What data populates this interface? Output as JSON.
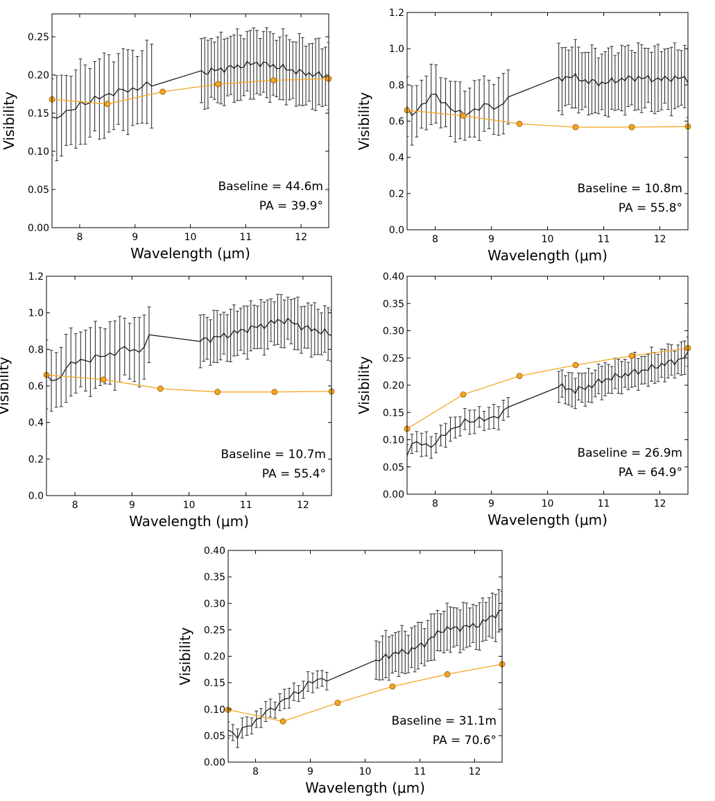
{
  "figure": {
    "description_axes": "five visibility-vs-wavelength panels",
    "colors": {
      "observed": "#1a1a1a",
      "errorbar": "#333333",
      "model": "#f5a623",
      "model_marker_edge": "#8a5a00"
    }
  },
  "chart_data": [
    {
      "type": "line",
      "xlabel": "Wavelength (μm)",
      "ylabel": "Visibility",
      "xlim": [
        7.5,
        12.5
      ],
      "ylim": [
        0.0,
        0.28
      ],
      "xticks": [
        8,
        9,
        10,
        11,
        12
      ],
      "xtick_labels": [
        "8",
        "9",
        "10",
        "11",
        "12"
      ],
      "yticks": [
        0.0,
        0.05,
        0.1,
        0.15,
        0.2,
        0.25
      ],
      "ytick_labels": [
        "0.00",
        "0.05",
        "0.10",
        "0.15",
        "0.20",
        "0.25"
      ],
      "annotation": {
        "baseline": "Baseline = 44.6m",
        "pa": "PA = 39.9°"
      },
      "observed": {
        "segments": [
          {
            "x_start": 7.5,
            "x_end": 9.3,
            "n": 22,
            "knots": [
              [
                7.5,
                0.145
              ],
              [
                7.6,
                0.142
              ],
              [
                7.7,
                0.155
              ],
              [
                7.8,
                0.148
              ],
              [
                8.0,
                0.163
              ],
              [
                8.2,
                0.165
              ],
              [
                8.5,
                0.175
              ],
              [
                8.7,
                0.178
              ],
              [
                9.0,
                0.182
              ],
              [
                9.3,
                0.188
              ]
            ],
            "err": 0.05
          },
          {
            "x_start": 10.2,
            "x_end": 12.5,
            "n": 40,
            "knots": [
              [
                10.2,
                0.203
              ],
              [
                10.6,
                0.208
              ],
              [
                11.0,
                0.213
              ],
              [
                11.2,
                0.216
              ],
              [
                11.5,
                0.212
              ],
              [
                11.8,
                0.207
              ],
              [
                12.0,
                0.203
              ],
              [
                12.3,
                0.2
              ],
              [
                12.5,
                0.198
              ]
            ],
            "err": 0.042
          }
        ]
      },
      "model": {
        "x": [
          7.5,
          8.5,
          9.5,
          10.5,
          11.5,
          12.5
        ],
        "y": [
          0.168,
          0.162,
          0.178,
          0.188,
          0.193,
          0.195
        ]
      }
    },
    {
      "type": "line",
      "xlabel": "Wavelength (μm)",
      "ylabel": "Visibility",
      "xlim": [
        7.5,
        12.5
      ],
      "ylim": [
        0.0,
        1.2
      ],
      "xticks": [
        8,
        9,
        10,
        11,
        12
      ],
      "xtick_labels": [
        "8",
        "9",
        "10",
        "11",
        "12"
      ],
      "yticks": [
        0.0,
        0.2,
        0.4,
        0.6,
        0.8,
        1.0,
        1.2
      ],
      "ytick_labels": [
        "0.0",
        "0.2",
        "0.4",
        "0.6",
        "0.8",
        "1.0",
        "1.2"
      ],
      "annotation": {
        "baseline": "Baseline = 10.8m",
        "pa": "PA = 55.8°"
      },
      "observed": {
        "segments": [
          {
            "x_start": 7.5,
            "x_end": 9.3,
            "n": 22,
            "knots": [
              [
                7.5,
                0.66
              ],
              [
                7.6,
                0.64
              ],
              [
                7.8,
                0.7
              ],
              [
                8.0,
                0.75
              ],
              [
                8.2,
                0.69
              ],
              [
                8.4,
                0.64
              ],
              [
                8.6,
                0.65
              ],
              [
                8.8,
                0.67
              ],
              [
                9.0,
                0.7
              ],
              [
                9.1,
                0.66
              ],
              [
                9.3,
                0.73
              ]
            ],
            "err": 0.15
          },
          {
            "x_start": 10.2,
            "x_end": 12.5,
            "n": 40,
            "knots": [
              [
                10.2,
                0.83
              ],
              [
                10.4,
                0.85
              ],
              [
                10.7,
                0.82
              ],
              [
                11.0,
                0.81
              ],
              [
                11.3,
                0.83
              ],
              [
                11.6,
                0.84
              ],
              [
                12.0,
                0.83
              ],
              [
                12.3,
                0.84
              ],
              [
                12.5,
                0.83
              ]
            ],
            "err": 0.17
          }
        ]
      },
      "model": {
        "x": [
          7.5,
          8.5,
          9.5,
          10.5,
          11.5,
          12.5
        ],
        "y": [
          0.66,
          0.63,
          0.585,
          0.567,
          0.567,
          0.57
        ]
      }
    },
    {
      "type": "line",
      "xlabel": "Wavelength (μm)",
      "ylabel": "Visibility",
      "xlim": [
        7.5,
        12.5
      ],
      "ylim": [
        0.0,
        1.2
      ],
      "xticks": [
        8,
        9,
        10,
        11,
        12
      ],
      "xtick_labels": [
        "8",
        "9",
        "10",
        "11",
        "12"
      ],
      "yticks": [
        0.0,
        0.2,
        0.4,
        0.6,
        0.8,
        1.0,
        1.2
      ],
      "ytick_labels": [
        "0.0",
        "0.2",
        "0.4",
        "0.6",
        "0.8",
        "1.0",
        "1.2"
      ],
      "annotation": {
        "baseline": "Baseline = 10.7m",
        "pa": "PA = 55.4°"
      },
      "observed": {
        "segments": [
          {
            "x_start": 7.5,
            "x_end": 9.3,
            "n": 22,
            "knots": [
              [
                7.5,
                0.66
              ],
              [
                7.65,
                0.61
              ],
              [
                7.8,
                0.69
              ],
              [
                8.0,
                0.73
              ],
              [
                8.3,
                0.75
              ],
              [
                8.6,
                0.77
              ],
              [
                8.8,
                0.8
              ],
              [
                9.0,
                0.8
              ],
              [
                9.1,
                0.78
              ],
              [
                9.3,
                0.86
              ]
            ],
            "err": 0.17
          },
          {
            "x_start": 10.2,
            "x_end": 12.5,
            "n": 40,
            "knots": [
              [
                10.2,
                0.85
              ],
              [
                10.4,
                0.86
              ],
              [
                10.7,
                0.88
              ],
              [
                11.0,
                0.91
              ],
              [
                11.3,
                0.93
              ],
              [
                11.6,
                0.96
              ],
              [
                11.8,
                0.95
              ],
              [
                12.0,
                0.92
              ],
              [
                12.3,
                0.9
              ],
              [
                12.5,
                0.88
              ]
            ],
            "err": 0.13
          }
        ]
      },
      "model": {
        "x": [
          7.5,
          8.5,
          9.5,
          10.5,
          11.5,
          12.5
        ],
        "y": [
          0.66,
          0.635,
          0.585,
          0.567,
          0.567,
          0.57
        ]
      }
    },
    {
      "type": "line",
      "xlabel": "Wavelength (μm)",
      "ylabel": "Visibility",
      "xlim": [
        7.5,
        12.5
      ],
      "ylim": [
        0.0,
        0.4
      ],
      "xticks": [
        8,
        9,
        10,
        11,
        12
      ],
      "xtick_labels": [
        "8",
        "9",
        "10",
        "11",
        "12"
      ],
      "yticks": [
        0.0,
        0.05,
        0.1,
        0.15,
        0.2,
        0.25,
        0.3,
        0.35,
        0.4
      ],
      "ytick_labels": [
        "0.00",
        "0.05",
        "0.10",
        "0.15",
        "0.20",
        "0.25",
        "0.30",
        "0.35",
        "0.40"
      ],
      "annotation": {
        "baseline": "Baseline = 26.9m",
        "pa": "PA = 64.9°"
      },
      "observed": {
        "segments": [
          {
            "x_start": 7.5,
            "x_end": 9.3,
            "n": 22,
            "knots": [
              [
                7.5,
                0.075
              ],
              [
                7.7,
                0.1
              ],
              [
                7.8,
                0.09
              ],
              [
                8.0,
                0.09
              ],
              [
                8.2,
                0.115
              ],
              [
                8.5,
                0.13
              ],
              [
                8.8,
                0.14
              ],
              [
                9.0,
                0.135
              ],
              [
                9.3,
                0.16
              ]
            ],
            "err": 0.02
          },
          {
            "x_start": 10.2,
            "x_end": 12.5,
            "n": 40,
            "knots": [
              [
                10.2,
                0.198
              ],
              [
                10.5,
                0.19
              ],
              [
                10.8,
                0.2
              ],
              [
                11.0,
                0.21
              ],
              [
                11.4,
                0.22
              ],
              [
                11.8,
                0.23
              ],
              [
                12.1,
                0.24
              ],
              [
                12.3,
                0.245
              ],
              [
                12.5,
                0.255
              ]
            ],
            "err": 0.028
          }
        ]
      },
      "model": {
        "x": [
          7.5,
          8.5,
          9.5,
          10.5,
          11.5,
          12.5
        ],
        "y": [
          0.12,
          0.183,
          0.217,
          0.237,
          0.254,
          0.268
        ]
      }
    },
    {
      "type": "line",
      "xlabel": "Wavelength (μm)",
      "ylabel": "Visibility",
      "xlim": [
        7.5,
        12.5
      ],
      "ylim": [
        0.0,
        0.4
      ],
      "xticks": [
        8,
        9,
        10,
        11,
        12
      ],
      "xtick_labels": [
        "8",
        "9",
        "10",
        "11",
        "12"
      ],
      "yticks": [
        0.0,
        0.05,
        0.1,
        0.15,
        0.2,
        0.25,
        0.3,
        0.35,
        0.4
      ],
      "ytick_labels": [
        "0.00",
        "0.05",
        "0.10",
        "0.15",
        "0.20",
        "0.25",
        "0.30",
        "0.35",
        "0.40"
      ],
      "annotation": {
        "baseline": "Baseline = 31.1m",
        "pa": "PA = 70.6°"
      },
      "observed": {
        "segments": [
          {
            "x_start": 7.5,
            "x_end": 9.3,
            "n": 22,
            "knots": [
              [
                7.5,
                0.06
              ],
              [
                7.7,
                0.045
              ],
              [
                7.8,
                0.07
              ],
              [
                8.0,
                0.075
              ],
              [
                8.2,
                0.095
              ],
              [
                8.5,
                0.115
              ],
              [
                8.8,
                0.135
              ],
              [
                9.0,
                0.15
              ],
              [
                9.3,
                0.16
              ]
            ],
            "err": 0.017
          },
          {
            "x_start": 10.2,
            "x_end": 12.5,
            "n": 40,
            "knots": [
              [
                10.2,
                0.19
              ],
              [
                10.5,
                0.205
              ],
              [
                10.8,
                0.21
              ],
              [
                11.1,
                0.225
              ],
              [
                11.4,
                0.25
              ],
              [
                11.8,
                0.255
              ],
              [
                12.1,
                0.26
              ],
              [
                12.3,
                0.275
              ],
              [
                12.5,
                0.285
              ]
            ],
            "err": 0.04
          }
        ]
      },
      "model": {
        "x": [
          7.5,
          8.5,
          9.5,
          10.5,
          11.5,
          12.5
        ],
        "y": [
          0.099,
          0.077,
          0.112,
          0.143,
          0.166,
          0.185
        ]
      }
    }
  ]
}
